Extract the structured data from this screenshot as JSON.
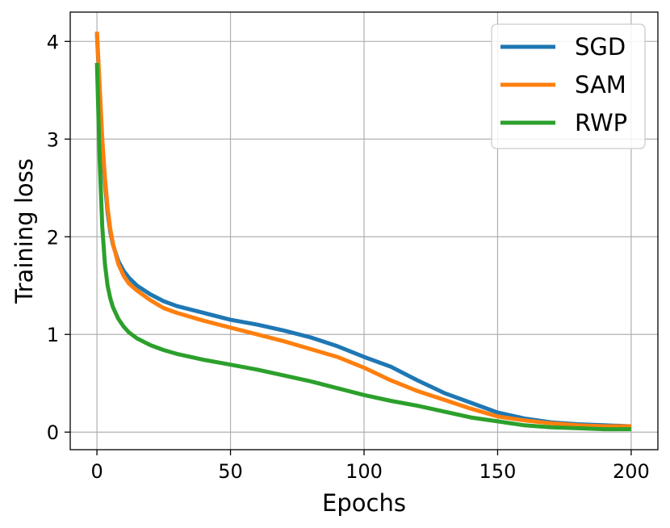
{
  "chart_data": {
    "type": "line",
    "xlabel": "Epochs",
    "ylabel": "Training loss",
    "xlim": [
      -10,
      210
    ],
    "ylim": [
      -0.18,
      4.3
    ],
    "xticks": [
      0,
      50,
      100,
      150,
      200
    ],
    "yticks": [
      0,
      1,
      2,
      3,
      4
    ],
    "grid": true,
    "legend_position": "top-right",
    "series": [
      {
        "name": "SGD",
        "color": "#1f77b4",
        "x": [
          0,
          1,
          2,
          3,
          4,
          5,
          6,
          8,
          10,
          12,
          15,
          20,
          25,
          30,
          40,
          50,
          60,
          70,
          80,
          90,
          100,
          110,
          120,
          130,
          140,
          150,
          160,
          170,
          180,
          190,
          200
        ],
        "y": [
          4.08,
          3.5,
          2.95,
          2.55,
          2.25,
          2.05,
          1.92,
          1.75,
          1.65,
          1.58,
          1.5,
          1.41,
          1.34,
          1.29,
          1.22,
          1.15,
          1.1,
          1.04,
          0.97,
          0.88,
          0.77,
          0.67,
          0.53,
          0.4,
          0.3,
          0.2,
          0.14,
          0.1,
          0.08,
          0.07,
          0.06
        ]
      },
      {
        "name": "SAM",
        "color": "#ff7f0e",
        "x": [
          0,
          1,
          2,
          3,
          4,
          5,
          6,
          8,
          10,
          12,
          15,
          20,
          25,
          30,
          40,
          50,
          60,
          70,
          80,
          90,
          100,
          110,
          120,
          130,
          140,
          150,
          160,
          170,
          180,
          190,
          200
        ],
        "y": [
          4.1,
          3.55,
          3.0,
          2.6,
          2.3,
          2.08,
          1.93,
          1.72,
          1.6,
          1.52,
          1.45,
          1.35,
          1.27,
          1.22,
          1.14,
          1.07,
          1.0,
          0.93,
          0.85,
          0.77,
          0.66,
          0.53,
          0.42,
          0.33,
          0.24,
          0.16,
          0.12,
          0.09,
          0.07,
          0.06,
          0.06
        ]
      },
      {
        "name": "RWP",
        "color": "#2ca02c",
        "x": [
          0,
          1,
          2,
          3,
          4,
          5,
          6,
          8,
          10,
          12,
          15,
          20,
          25,
          30,
          40,
          50,
          60,
          70,
          80,
          90,
          100,
          110,
          120,
          130,
          140,
          150,
          160,
          170,
          180,
          190,
          200
        ],
        "y": [
          3.78,
          2.8,
          2.1,
          1.72,
          1.5,
          1.37,
          1.28,
          1.16,
          1.08,
          1.02,
          0.96,
          0.89,
          0.84,
          0.8,
          0.74,
          0.69,
          0.64,
          0.58,
          0.52,
          0.45,
          0.38,
          0.32,
          0.27,
          0.21,
          0.15,
          0.11,
          0.07,
          0.05,
          0.04,
          0.03,
          0.03
        ]
      }
    ]
  }
}
